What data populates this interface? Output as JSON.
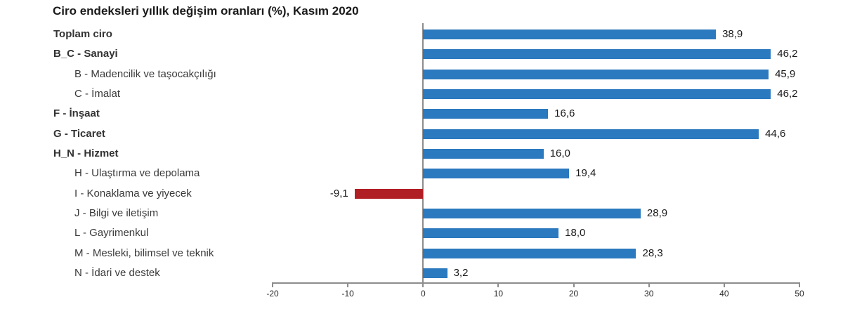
{
  "title": "Ciro endeksleri yıllık değişim oranları (%), Kasım 2020",
  "colors": {
    "bar_positive": "#2B79BE",
    "bar_negative": "#B01F24",
    "axis": "#8D8D8D",
    "category_label": "#3A3A3A",
    "value_label": "#1A1A1A",
    "background": "#FFFFFF"
  },
  "axis": {
    "min": -20,
    "max": 50,
    "tick_values": [
      -20,
      -10,
      0,
      10,
      20,
      30,
      40,
      50
    ],
    "tick_labels": [
      "-20",
      "-10",
      "0",
      "10",
      "20",
      "30",
      "40",
      "50"
    ]
  },
  "chart_data": {
    "type": "bar",
    "orientation": "horizontal",
    "title": "Ciro endeksleri yıllık değişim oranları (%), Kasım 2020",
    "categories": [
      "Toplam ciro",
      "B_C - Sanayi",
      "B - Madencilik ve taşocakçılığı",
      "C - İmalat",
      "F - İnşaat",
      "G - Ticaret",
      "H_N - Hizmet",
      "H - Ulaştırma ve depolama",
      "I - Konaklama ve yiyecek",
      "J - Bilgi ve iletişim",
      "L - Gayrimenkul",
      "M - Mesleki, bilimsel ve teknik",
      "N - İdari ve destek"
    ],
    "values": [
      38.9,
      46.2,
      45.9,
      46.2,
      16.6,
      44.6,
      16.0,
      19.4,
      -9.1,
      28.9,
      18.0,
      28.3,
      3.2
    ],
    "value_labels": [
      "38,9",
      "46,2",
      "45,9",
      "46,2",
      "16,6",
      "44,6",
      "16,0",
      "19,4",
      "-9,1",
      "28,9",
      "18,0",
      "28,3",
      "3,2"
    ],
    "bold_categories": [
      true,
      true,
      false,
      false,
      true,
      true,
      true,
      false,
      false,
      false,
      false,
      false,
      false
    ],
    "xlim": [
      -20,
      50
    ],
    "grid": false,
    "legend": false
  }
}
